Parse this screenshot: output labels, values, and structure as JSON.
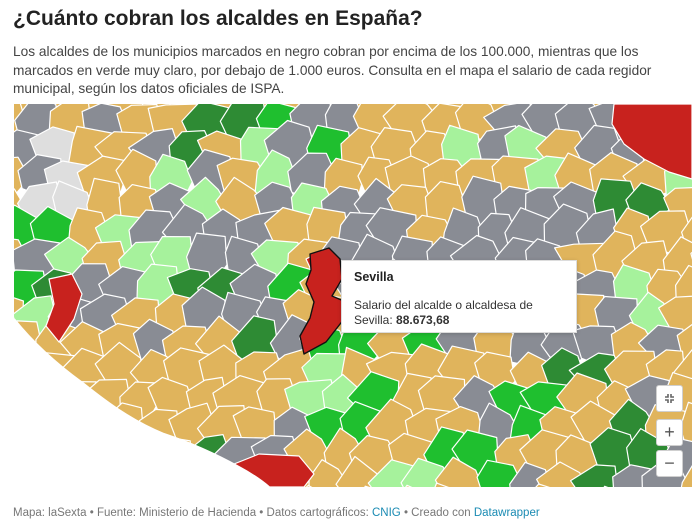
{
  "header": {
    "title": "¿Cuánto cobran los alcaldes en España?",
    "subtitle": "Los alcaldes de los municipios marcados en negro cobran por encima de los 100.000, mientras que los marcados en verde muy claro, por debajo de 1.000 euros. Consulta en el mapa el salario de cada regidor municipal, según los datos oficiales de ISPA."
  },
  "map": {
    "colors": {
      "gray": "#898c94",
      "tan": "#e0b45c",
      "green_light": "#a6f29c",
      "green": "#1fbf2f",
      "green_dark": "#2e8b34",
      "red": "#c8221e",
      "no_data": "#dedede"
    },
    "tooltip": {
      "name": "Sevilla",
      "label": "Salario del alcalde o alcaldesa de Sevilla:",
      "value": "88.673,68"
    },
    "controls": {
      "fit_icon": "fit-screen-icon",
      "zoom_in_label": "+",
      "zoom_out_label": "−"
    }
  },
  "footer": {
    "map_credit": "Mapa: laSexta",
    "source": "Fuente: Ministerio de Hacienda",
    "geo_data_label": "Datos cartográficos:",
    "geo_data_link": "CNIG",
    "created_label": "Creado con",
    "created_link": "Datawrapper"
  }
}
